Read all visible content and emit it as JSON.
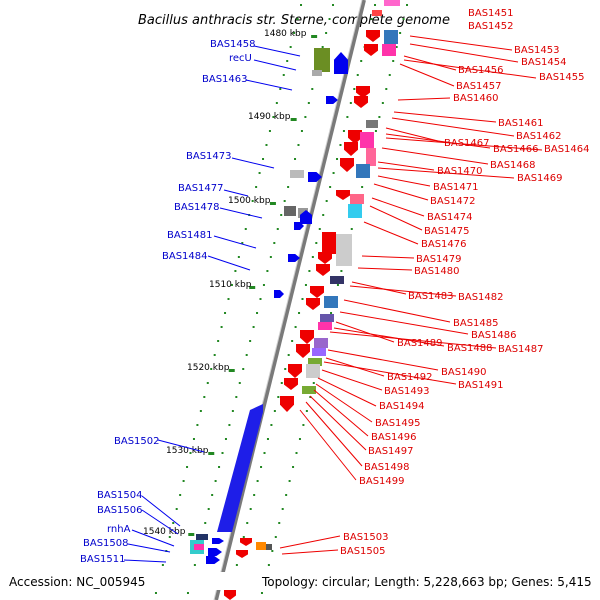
{
  "title": "Bacillus anthracis str. Sterne, complete genome",
  "footer": {
    "accession": "Accession: NC_005945",
    "topology": "Topology: circular; Length: 5,228,663 bp; Genes: 5,415"
  },
  "colors": {
    "forward_label": "#0000cc",
    "reverse_label": "#dd0000",
    "backbone": "#808080",
    "tick": "#227722"
  },
  "scale_ticks": [
    "1480 kbp",
    "1490 kbp",
    "1500 kbp",
    "1510 kbp",
    "1520 kbp",
    "1530 kbp",
    "1540 kbp"
  ],
  "left_labels": [
    "BAS1458",
    "recU",
    "BAS1463",
    "BAS1473",
    "BAS1477",
    "BAS1478",
    "BAS1481",
    "BAS1484",
    "BAS1502",
    "BAS1504",
    "BAS1506",
    "rnhA",
    "BAS1508",
    "BAS1511"
  ],
  "right_labels": [
    "BAS1451",
    "BAS1452",
    "BAS1453",
    "BAS1454",
    "BAS1456",
    "BAS1455",
    "BAS1457",
    "BAS1460",
    "BAS1461",
    "BAS1462",
    "BAS1467",
    "BAS1466",
    "BAS1464",
    "BAS1468",
    "BAS1470",
    "BAS1469",
    "BAS1471",
    "BAS1472",
    "BAS1474",
    "BAS1475",
    "BAS1476",
    "BAS1479",
    "BAS1480",
    "BAS1483",
    "BAS1482",
    "BAS1485",
    "BAS1486",
    "BAS1489",
    "BAS1488",
    "BAS1487",
    "BAS1490",
    "BAS1492",
    "BAS1491",
    "BAS1493",
    "BAS1494",
    "BAS1495",
    "BAS1496",
    "BAS1497",
    "BAS1498",
    "BAS1499",
    "BAS1503",
    "BAS1505"
  ]
}
